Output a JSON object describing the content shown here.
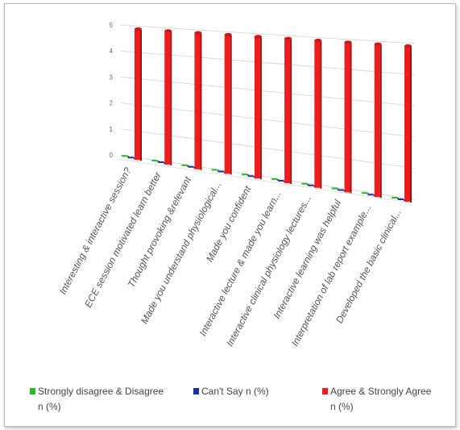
{
  "chart_data": {
    "type": "bar",
    "title": "",
    "xlabel": "",
    "ylabel": "",
    "ylim": [
      0,
      5
    ],
    "yticks": [
      0,
      1,
      2,
      3,
      4,
      5
    ],
    "grid": true,
    "legend_position": "bottom",
    "categories": [
      "Interesting & interactive session?",
      "ECE session motivated learn better",
      "Thought provoking &relevant",
      "Made you understand physiological...",
      "Made you confident",
      "Interactive lecture & made you learn...",
      "Interactive clinical physiology lectures...",
      "Interactive learning was helpful",
      "Interpretation of lab report example...",
      "Developed the basic clinical..."
    ],
    "series": [
      {
        "name": "Strongly disagree & Disagree n (%)",
        "color": "#2db52d",
        "values": [
          0.05,
          0.05,
          0.05,
          0.05,
          0.05,
          0.05,
          0.05,
          0.05,
          0.05,
          0.05
        ]
      },
      {
        "name": "Can't Say n (%)",
        "color": "#1f2fa8",
        "values": [
          0.05,
          0.05,
          0.05,
          0.05,
          0.05,
          0.05,
          0.05,
          0.05,
          0.05,
          0.05
        ]
      },
      {
        "name": "Agree & Strongly Agree n (%)",
        "color": "#ee1c1c",
        "values": [
          5,
          5,
          5,
          5,
          5,
          5,
          5,
          5,
          5,
          5
        ]
      }
    ]
  }
}
